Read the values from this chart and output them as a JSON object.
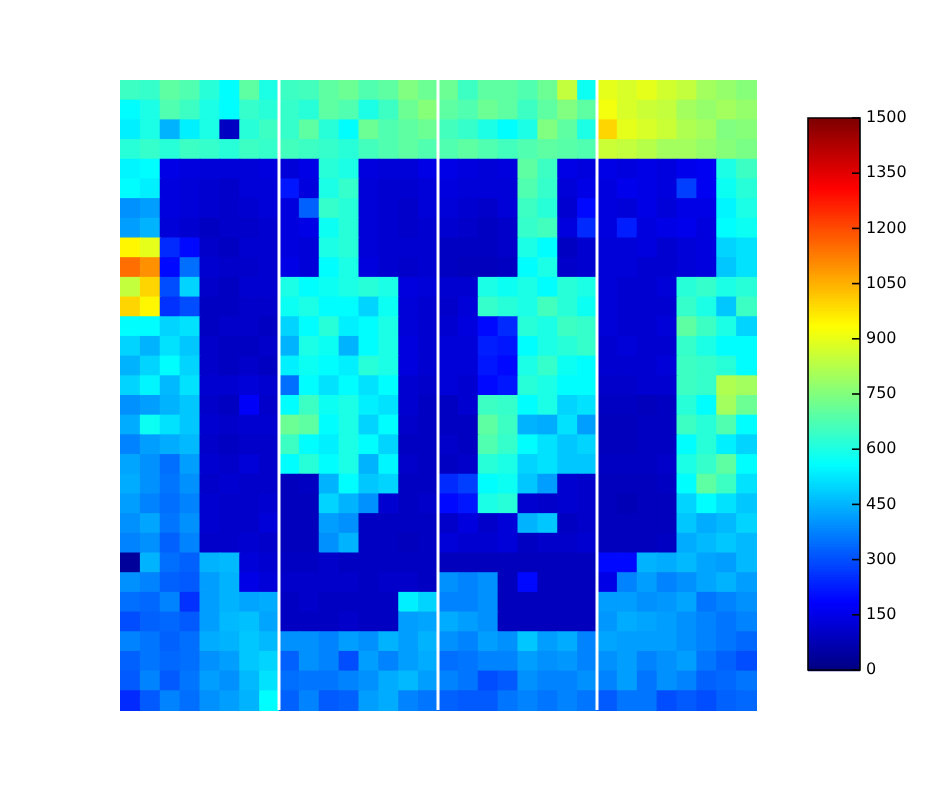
{
  "chart_data": {
    "type": "heatmap",
    "categories": [
      null,
      null,
      null,
      null,
      null,
      null,
      null,
      null,
      null,
      null,
      null,
      null,
      null,
      null,
      null,
      null,
      null,
      null,
      null,
      null,
      null,
      null,
      null,
      null,
      null,
      null,
      null,
      null,
      null,
      null,
      null,
      null
    ],
    "y_categories": [
      null,
      null,
      null,
      null,
      null,
      null,
      null,
      null,
      null,
      null,
      null,
      null,
      null,
      null,
      null,
      null,
      null,
      null,
      null,
      null,
      null,
      null,
      null,
      null,
      null,
      null,
      null,
      null,
      null,
      null,
      null,
      null
    ],
    "cells": [
      [
        650,
        640,
        700,
        680,
        620,
        560,
        700,
        600,
        650,
        660,
        700,
        720,
        680,
        700,
        750,
        720,
        720,
        650,
        700,
        700,
        680,
        720,
        850,
        580,
        900,
        880,
        900,
        870,
        850,
        800,
        780,
        760
      ],
      [
        560,
        600,
        680,
        650,
        600,
        560,
        640,
        620,
        640,
        620,
        700,
        680,
        600,
        650,
        720,
        760,
        700,
        680,
        720,
        700,
        650,
        700,
        750,
        700,
        920,
        880,
        860,
        850,
        800,
        780,
        800,
        780
      ],
      [
        540,
        600,
        450,
        540,
        600,
        100,
        620,
        650,
        640,
        700,
        620,
        560,
        720,
        680,
        700,
        720,
        660,
        640,
        600,
        560,
        600,
        750,
        700,
        600,
        1000,
        900,
        880,
        860,
        820,
        800,
        750,
        760
      ],
      [
        620,
        640,
        620,
        650,
        640,
        620,
        650,
        640,
        660,
        650,
        640,
        620,
        660,
        680,
        700,
        680,
        680,
        700,
        680,
        660,
        680,
        700,
        690,
        680,
        860,
        850,
        830,
        800,
        800,
        780,
        760,
        740
      ],
      [
        550,
        560,
        150,
        140,
        130,
        130,
        130,
        140,
        130,
        150,
        620,
        600,
        140,
        130,
        130,
        150,
        150,
        140,
        130,
        140,
        700,
        650,
        150,
        140,
        150,
        140,
        150,
        140,
        160,
        170,
        600,
        650
      ],
      [
        560,
        540,
        140,
        130,
        120,
        110,
        130,
        130,
        220,
        140,
        600,
        640,
        130,
        120,
        120,
        130,
        140,
        130,
        130,
        130,
        680,
        640,
        130,
        150,
        140,
        160,
        150,
        140,
        280,
        170,
        580,
        620
      ],
      [
        400,
        420,
        140,
        130,
        120,
        110,
        120,
        130,
        140,
        330,
        640,
        620,
        130,
        120,
        110,
        130,
        130,
        120,
        110,
        130,
        650,
        620,
        120,
        200,
        140,
        130,
        150,
        130,
        150,
        150,
        550,
        600
      ],
      [
        420,
        450,
        130,
        120,
        100,
        110,
        110,
        120,
        140,
        150,
        580,
        620,
        130,
        120,
        110,
        120,
        120,
        110,
        100,
        110,
        640,
        660,
        140,
        250,
        140,
        230,
        140,
        150,
        160,
        140,
        560,
        580
      ],
      [
        950,
        900,
        250,
        200,
        110,
        100,
        120,
        120,
        140,
        130,
        600,
        620,
        130,
        120,
        120,
        120,
        100,
        100,
        100,
        110,
        600,
        560,
        100,
        120,
        130,
        130,
        140,
        120,
        130,
        140,
        500,
        520
      ],
      [
        1150,
        1100,
        200,
        350,
        120,
        110,
        110,
        120,
        150,
        130,
        560,
        600,
        140,
        120,
        110,
        120,
        100,
        90,
        90,
        100,
        560,
        600,
        110,
        120,
        130,
        130,
        120,
        120,
        130,
        140,
        480,
        520
      ],
      [
        850,
        1000,
        300,
        500,
        110,
        100,
        120,
        120,
        600,
        560,
        580,
        600,
        620,
        600,
        140,
        130,
        120,
        120,
        600,
        580,
        600,
        560,
        620,
        600,
        130,
        120,
        120,
        130,
        620,
        640,
        600,
        620
      ],
      [
        1000,
        950,
        260,
        300,
        100,
        100,
        110,
        110,
        580,
        600,
        560,
        560,
        500,
        580,
        130,
        120,
        110,
        130,
        640,
        620,
        600,
        660,
        620,
        580,
        130,
        120,
        120,
        120,
        640,
        600,
        480,
        650
      ],
      [
        560,
        560,
        500,
        520,
        100,
        110,
        110,
        100,
        500,
        560,
        620,
        540,
        560,
        600,
        130,
        120,
        120,
        140,
        200,
        250,
        620,
        600,
        650,
        640,
        130,
        120,
        120,
        130,
        700,
        650,
        600,
        500
      ],
      [
        500,
        450,
        520,
        480,
        110,
        100,
        100,
        110,
        450,
        600,
        580,
        450,
        560,
        600,
        140,
        120,
        130,
        130,
        230,
        220,
        560,
        600,
        620,
        640,
        120,
        130,
        120,
        120,
        640,
        600,
        560,
        560
      ],
      [
        450,
        500,
        560,
        500,
        110,
        100,
        110,
        100,
        540,
        580,
        560,
        540,
        620,
        600,
        140,
        120,
        130,
        130,
        220,
        200,
        600,
        640,
        580,
        560,
        120,
        120,
        120,
        130,
        650,
        640,
        620,
        560
      ],
      [
        500,
        550,
        460,
        520,
        120,
        120,
        130,
        120,
        350,
        560,
        520,
        560,
        520,
        560,
        120,
        110,
        130,
        120,
        200,
        220,
        620,
        600,
        560,
        560,
        110,
        110,
        120,
        120,
        650,
        640,
        820,
        800
      ],
      [
        400,
        420,
        450,
        480,
        110,
        100,
        180,
        110,
        560,
        650,
        580,
        600,
        540,
        520,
        120,
        100,
        100,
        120,
        650,
        640,
        560,
        600,
        500,
        520,
        100,
        100,
        90,
        100,
        620,
        560,
        800,
        720
      ],
      [
        440,
        580,
        520,
        480,
        120,
        110,
        120,
        120,
        720,
        700,
        560,
        600,
        500,
        560,
        110,
        100,
        100,
        100,
        700,
        650,
        450,
        440,
        520,
        420,
        90,
        90,
        100,
        100,
        650,
        620,
        680,
        560
      ],
      [
        380,
        420,
        440,
        460,
        110,
        100,
        110,
        110,
        650,
        560,
        540,
        600,
        560,
        500,
        100,
        100,
        110,
        100,
        680,
        640,
        560,
        520,
        480,
        500,
        90,
        90,
        100,
        100,
        560,
        620,
        540,
        500
      ],
      [
        430,
        400,
        350,
        420,
        120,
        110,
        130,
        110,
        560,
        620,
        560,
        600,
        450,
        550,
        110,
        100,
        100,
        110,
        620,
        600,
        500,
        520,
        480,
        480,
        100,
        100,
        100,
        110,
        600,
        640,
        700,
        560
      ],
      [
        440,
        400,
        360,
        400,
        110,
        120,
        110,
        110,
        90,
        100,
        450,
        560,
        480,
        500,
        100,
        100,
        250,
        280,
        560,
        580,
        480,
        420,
        120,
        110,
        90,
        90,
        90,
        100,
        560,
        700,
        650,
        520
      ],
      [
        420,
        380,
        350,
        380,
        120,
        110,
        110,
        120,
        90,
        90,
        500,
        450,
        400,
        120,
        100,
        110,
        200,
        220,
        600,
        620,
        120,
        110,
        120,
        110,
        90,
        80,
        90,
        90,
        500,
        560,
        520,
        480
      ],
      [
        400,
        430,
        360,
        400,
        120,
        110,
        110,
        130,
        90,
        90,
        420,
        400,
        100,
        100,
        100,
        100,
        110,
        140,
        110,
        130,
        450,
        480,
        100,
        110,
        90,
        90,
        90,
        90,
        480,
        440,
        460,
        500
      ],
      [
        380,
        400,
        330,
        380,
        110,
        110,
        120,
        110,
        90,
        90,
        400,
        450,
        100,
        100,
        90,
        100,
        130,
        120,
        120,
        130,
        100,
        110,
        110,
        120,
        90,
        90,
        90,
        100,
        440,
        460,
        480,
        460
      ],
      [
        40,
        450,
        350,
        330,
        450,
        460,
        130,
        120,
        100,
        100,
        110,
        100,
        100,
        100,
        100,
        100,
        90,
        90,
        90,
        90,
        90,
        90,
        90,
        90,
        200,
        200,
        450,
        440,
        460,
        430,
        420,
        460
      ],
      [
        400,
        380,
        330,
        320,
        420,
        450,
        150,
        130,
        110,
        110,
        110,
        110,
        100,
        110,
        110,
        100,
        400,
        380,
        400,
        90,
        200,
        90,
        90,
        90,
        150,
        380,
        420,
        380,
        400,
        430,
        450,
        420
      ],
      [
        350,
        340,
        380,
        260,
        420,
        450,
        430,
        440,
        100,
        110,
        100,
        100,
        100,
        100,
        540,
        500,
        380,
        380,
        400,
        90,
        90,
        90,
        90,
        90,
        420,
        420,
        400,
        410,
        430,
        360,
        380,
        400
      ],
      [
        300,
        330,
        340,
        320,
        420,
        460,
        470,
        430,
        100,
        100,
        100,
        110,
        100,
        100,
        420,
        430,
        440,
        420,
        400,
        90,
        90,
        90,
        90,
        90,
        410,
        440,
        430,
        420,
        400,
        380,
        360,
        380
      ],
      [
        380,
        360,
        330,
        350,
        440,
        450,
        480,
        460,
        400,
        400,
        380,
        420,
        400,
        450,
        420,
        450,
        400,
        380,
        420,
        400,
        480,
        420,
        440,
        380,
        430,
        420,
        420,
        420,
        400,
        380,
        360,
        340
      ],
      [
        330,
        360,
        340,
        350,
        400,
        420,
        480,
        500,
        330,
        400,
        380,
        300,
        420,
        380,
        420,
        440,
        350,
        360,
        380,
        380,
        420,
        400,
        410,
        380,
        400,
        420,
        380,
        400,
        420,
        360,
        330,
        300
      ],
      [
        320,
        380,
        320,
        360,
        420,
        400,
        460,
        520,
        350,
        360,
        360,
        380,
        400,
        440,
        460,
        420,
        380,
        360,
        300,
        320,
        400,
        380,
        380,
        400,
        380,
        420,
        360,
        400,
        380,
        330,
        340,
        360
      ],
      [
        250,
        320,
        380,
        350,
        400,
        420,
        450,
        560,
        330,
        380,
        320,
        330,
        420,
        440,
        380,
        360,
        330,
        320,
        320,
        360,
        380,
        360,
        380,
        360,
        320,
        360,
        360,
        300,
        320,
        300,
        330,
        340
      ]
    ],
    "clim": [
      0,
      1500
    ],
    "cticks": [
      0,
      150,
      300,
      450,
      600,
      750,
      900,
      1050,
      1200,
      1350,
      1500
    ]
  }
}
